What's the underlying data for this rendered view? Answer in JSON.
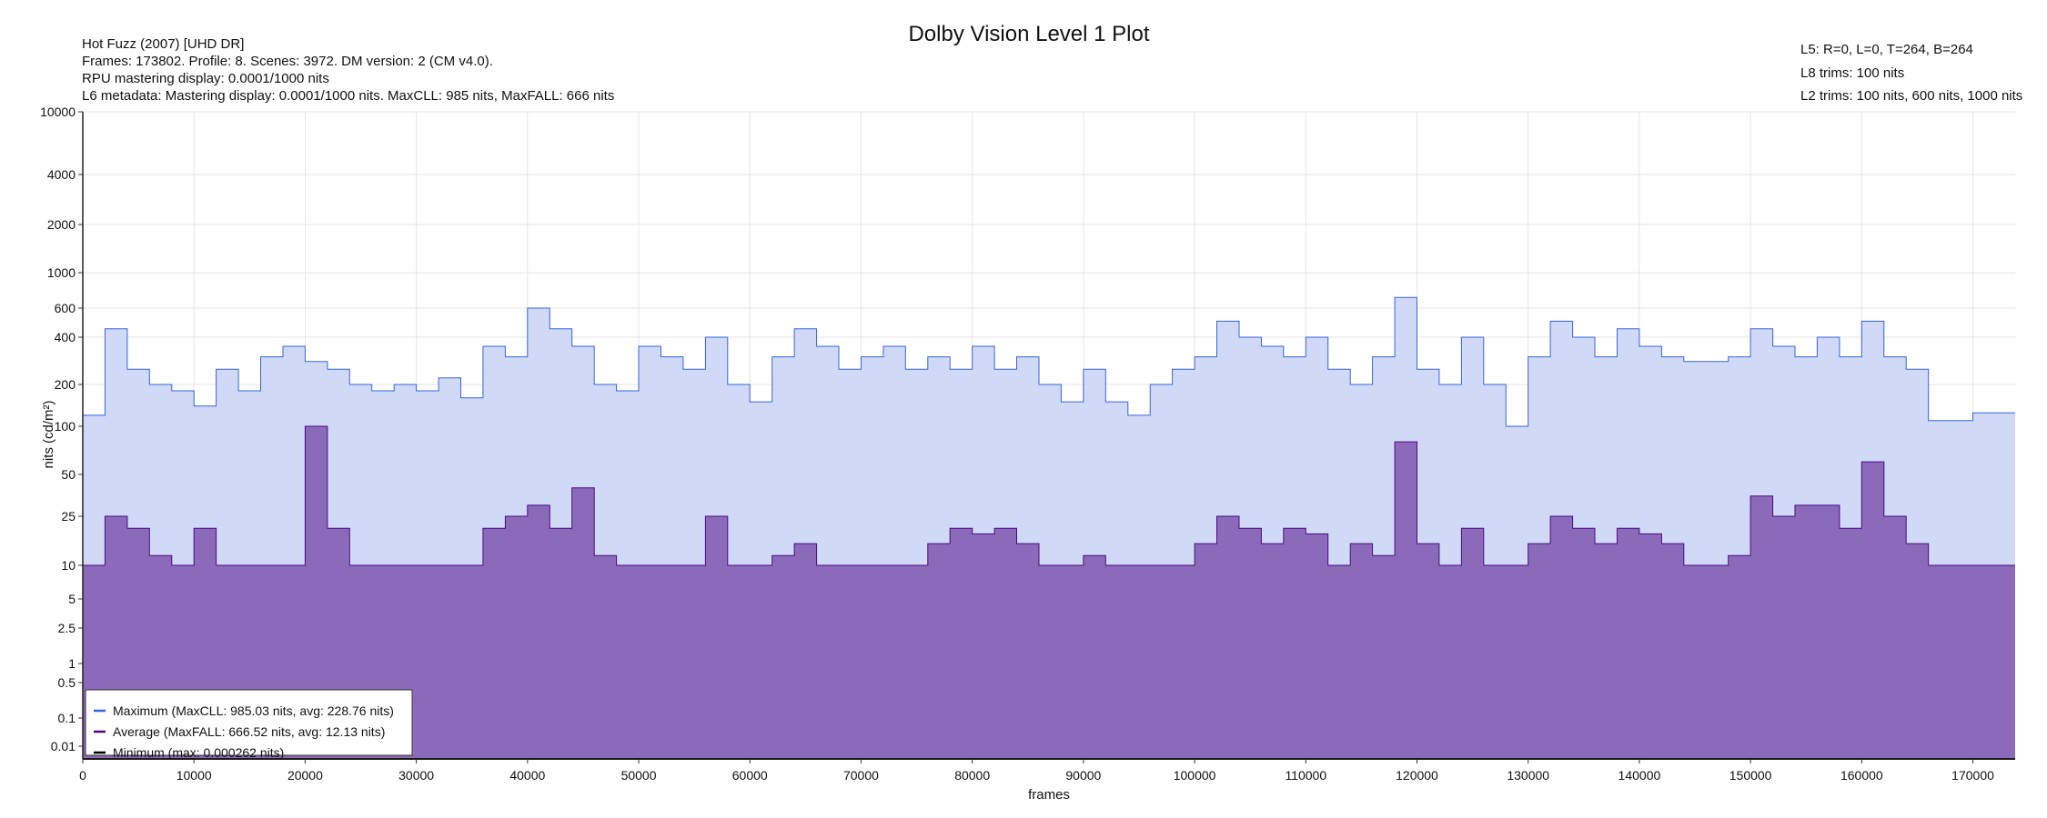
{
  "chart_data": {
    "type": "area",
    "title": "Dolby Vision Level 1 Plot",
    "info_left": [
      "Hot Fuzz (2007) [UHD DR]",
      "Frames: 173802. Profile: 8. Scenes: 3972. DM version: 2 (CM v4.0).",
      "RPU mastering display: 0.0001/1000 nits",
      "L6 metadata: Mastering display: 0.0001/1000 nits. MaxCLL: 985 nits, MaxFALL: 666 nits"
    ],
    "info_right": [
      "L5: R=0, L=0, T=264, B=264",
      "L8 trims: 100 nits",
      "L2 trims: 100 nits, 600 nits, 1000 nits"
    ],
    "xlabel": "frames",
    "ylabel": "nits (cd/m²)",
    "xlim": [
      0,
      173802
    ],
    "ylim": [
      0,
      10000
    ],
    "yscale": "pq",
    "grid": true,
    "legend_position": "bottom-left",
    "x_ticks": [
      "0",
      "10000",
      "20000",
      "30000",
      "40000",
      "50000",
      "60000",
      "70000",
      "80000",
      "90000",
      "100000",
      "110000",
      "120000",
      "130000",
      "140000",
      "150000",
      "160000",
      "170000"
    ],
    "y_ticks": [
      "10000",
      "4000",
      "2000",
      "1000",
      "600",
      "400",
      "200",
      "100",
      "50",
      "25",
      "10",
      "5",
      "2.5",
      "1",
      "0.5",
      "0.1",
      "0.01"
    ],
    "x_step_frames": 2000,
    "series": [
      {
        "name": "Maximum (MaxCLL: 985.03 nits, avg: 228.76 nits)",
        "color": "#3a62e0",
        "fill": "#d0daf6",
        "values": [
          120,
          450,
          250,
          200,
          180,
          140,
          250,
          180,
          300,
          350,
          280,
          250,
          200,
          180,
          200,
          180,
          220,
          160,
          350,
          300,
          600,
          450,
          350,
          200,
          180,
          350,
          300,
          250,
          400,
          200,
          150,
          300,
          450,
          350,
          250,
          300,
          350,
          250,
          300,
          250,
          350,
          250,
          300,
          200,
          150,
          250,
          150,
          120,
          200,
          250,
          300,
          500,
          400,
          350,
          300,
          400,
          250,
          200,
          300,
          700,
          250,
          200,
          400,
          200,
          100,
          300,
          500,
          400,
          300,
          450,
          350,
          300,
          280,
          280,
          300,
          450,
          350,
          300,
          400,
          300,
          500,
          300,
          250,
          110,
          110,
          125,
          125,
          125
        ]
      },
      {
        "name": "Average (MaxFALL: 666.52 nits, avg: 12.13 nits)",
        "color": "#4b0a82",
        "fill": "#8b6bb9",
        "values": [
          10,
          25,
          20,
          12,
          10,
          20,
          10,
          10,
          10,
          10,
          100,
          20,
          10,
          10,
          10,
          10,
          10,
          10,
          20,
          25,
          30,
          20,
          40,
          12,
          10,
          10,
          10,
          10,
          25,
          10,
          10,
          12,
          15,
          10,
          10,
          10,
          10,
          10,
          15,
          20,
          18,
          20,
          15,
          10,
          10,
          12,
          10,
          10,
          10,
          10,
          15,
          25,
          20,
          15,
          20,
          18,
          10,
          15,
          12,
          80,
          15,
          10,
          20,
          10,
          10,
          15,
          25,
          20,
          15,
          20,
          18,
          15,
          10,
          10,
          12,
          35,
          25,
          30,
          30,
          20,
          60,
          25,
          15,
          10,
          10,
          10,
          10,
          10
        ]
      },
      {
        "name": "Minimum (max: 0.000262 nits)",
        "color": "#000000",
        "fill": "none",
        "values": [
          0.0001,
          0.0001,
          0.0001,
          0.0001,
          0.0001,
          0.0001,
          0.0001,
          0.0001,
          0.0001,
          0.0001,
          0.0001,
          0.0001,
          0.0001,
          0.0001,
          0.0001,
          0.0001,
          0.0001,
          0.0001,
          0.0001,
          0.0001,
          0.0001,
          0.0001,
          0.0001,
          0.0001,
          0.0001,
          0.0001,
          0.0001,
          0.0001,
          0.0001,
          0.0001,
          0.0001,
          0.0001,
          0.0001,
          0.0001,
          0.0001,
          0.0001,
          0.0001,
          0.0001,
          0.0001,
          0.0001,
          0.0001,
          0.0001,
          0.0001,
          0.0001,
          0.0001,
          0.0001,
          0.0001,
          0.0001,
          0.0001,
          0.0001,
          0.0001,
          0.0001,
          0.0001,
          0.0001,
          0.0001,
          0.0001,
          0.0001,
          0.0001,
          0.0001,
          0.0001,
          0.0001,
          0.0001,
          0.0001,
          0.0001,
          0.0001,
          0.0001,
          0.0001,
          0.0001,
          0.0001,
          0.0001,
          0.0001,
          0.0001,
          0.0001,
          0.0001,
          0.0001,
          0.0001,
          0.0001,
          0.0001,
          0.0001,
          0.0001,
          0.0001,
          0.0001,
          0.0001,
          0.0001,
          0.0001,
          0.0001,
          0.0001,
          0.0001
        ]
      }
    ]
  }
}
